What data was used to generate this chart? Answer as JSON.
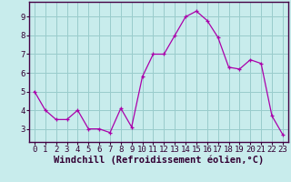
{
  "x": [
    0,
    1,
    2,
    3,
    4,
    5,
    6,
    7,
    8,
    9,
    10,
    11,
    12,
    13,
    14,
    15,
    16,
    17,
    18,
    19,
    20,
    21,
    22,
    23
  ],
  "y": [
    5.0,
    4.0,
    3.5,
    3.5,
    4.0,
    3.0,
    3.0,
    2.8,
    4.1,
    3.1,
    5.8,
    7.0,
    7.0,
    8.0,
    9.0,
    9.3,
    8.8,
    7.9,
    6.3,
    6.2,
    6.7,
    6.5,
    3.7,
    2.7
  ],
  "line_color": "#aa00aa",
  "marker": "+",
  "marker_color": "#aa00aa",
  "bg_color": "#c8ecec",
  "grid_color": "#99cccc",
  "border_color": "#440044",
  "xlabel": "Windchill (Refroidissement éolien,°C)",
  "xlabel_color": "#330033",
  "xlabel_fontsize": 7.5,
  "tick_color": "#330033",
  "tick_fontsize": 6.5,
  "xlim": [
    -0.5,
    23.5
  ],
  "ylim": [
    2.3,
    9.8
  ],
  "yticks": [
    3,
    4,
    5,
    6,
    7,
    8,
    9
  ],
  "xticks": [
    0,
    1,
    2,
    3,
    4,
    5,
    6,
    7,
    8,
    9,
    10,
    11,
    12,
    13,
    14,
    15,
    16,
    17,
    18,
    19,
    20,
    21,
    22,
    23
  ],
  "xtick_labels": [
    "0",
    "1",
    "2",
    "3",
    "4",
    "5",
    "6",
    "7",
    "8",
    "9",
    "10",
    "11",
    "12",
    "13",
    "14",
    "15",
    "16",
    "17",
    "18",
    "19",
    "20",
    "21",
    "22",
    "23"
  ],
  "font_family": "monospace"
}
